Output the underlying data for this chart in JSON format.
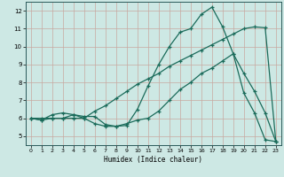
{
  "xlabel": "Humidex (Indice chaleur)",
  "xlim": [
    -0.5,
    23.5
  ],
  "ylim": [
    4.5,
    12.5
  ],
  "yticks": [
    5,
    6,
    7,
    8,
    9,
    10,
    11,
    12
  ],
  "xticks": [
    0,
    1,
    2,
    3,
    4,
    5,
    6,
    7,
    8,
    9,
    10,
    11,
    12,
    13,
    14,
    15,
    16,
    17,
    18,
    19,
    20,
    21,
    22,
    23
  ],
  "bg_color": "#cde8e4",
  "grid_color": "#c8a8a0",
  "line_color": "#1a6b5a",
  "line1_x": [
    0,
    1,
    2,
    3,
    4,
    5,
    6,
    7,
    8,
    9,
    10,
    11,
    12,
    13,
    14,
    15,
    16,
    17,
    18,
    19,
    20,
    21,
    22,
    23
  ],
  "line1_y": [
    6.0,
    5.9,
    6.2,
    6.3,
    6.2,
    6.0,
    5.7,
    5.55,
    5.55,
    5.6,
    6.5,
    7.8,
    9.0,
    10.0,
    10.8,
    11.0,
    11.8,
    12.2,
    11.1,
    9.6,
    7.4,
    6.3,
    4.8,
    4.7
  ],
  "line2_x": [
    0,
    1,
    2,
    3,
    4,
    5,
    6,
    7,
    8,
    9,
    10,
    11,
    12,
    13,
    14,
    15,
    16,
    17,
    18,
    19,
    20,
    21,
    22,
    23
  ],
  "line2_y": [
    6.0,
    5.9,
    6.0,
    6.0,
    6.2,
    6.1,
    6.1,
    5.65,
    5.55,
    5.7,
    5.9,
    6.0,
    6.4,
    7.0,
    7.6,
    8.0,
    8.5,
    8.8,
    9.2,
    9.6,
    8.5,
    7.5,
    6.3,
    4.7
  ],
  "line3_x": [
    0,
    1,
    2,
    3,
    4,
    5,
    6,
    7,
    8,
    9,
    10,
    11,
    12,
    13,
    14,
    15,
    16,
    17,
    18,
    19,
    20,
    21,
    22,
    23
  ],
  "line3_y": [
    6.0,
    6.0,
    6.0,
    6.0,
    6.0,
    6.0,
    6.4,
    6.7,
    7.1,
    7.5,
    7.9,
    8.2,
    8.5,
    8.9,
    9.2,
    9.5,
    9.8,
    10.1,
    10.4,
    10.7,
    11.0,
    11.1,
    11.05,
    4.7
  ]
}
